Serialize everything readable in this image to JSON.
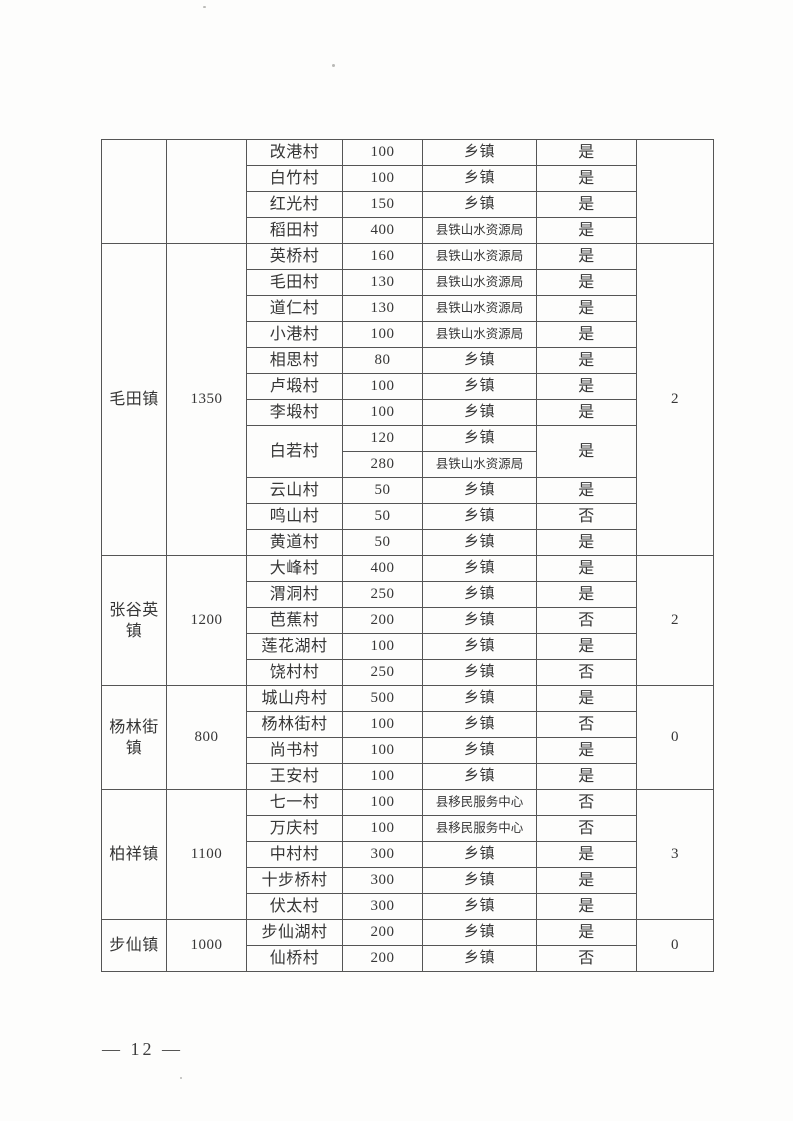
{
  "page": {
    "number_display": "— 12 —"
  },
  "table": {
    "sections": [
      {
        "town": "",
        "total": "",
        "count": "",
        "rows": [
          {
            "village": "改港村",
            "amount": "100",
            "source": "乡镇",
            "approved": "是"
          },
          {
            "village": "白竹村",
            "amount": "100",
            "source": "乡镇",
            "approved": "是"
          },
          {
            "village": "红光村",
            "amount": "150",
            "source": "乡镇",
            "approved": "是"
          },
          {
            "village": "稻田村",
            "amount": "400",
            "source": "县铁山水资源局",
            "approved": "是"
          }
        ]
      },
      {
        "town": "毛田镇",
        "total": "1350",
        "count": "2",
        "rows": [
          {
            "village": "英桥村",
            "amount": "160",
            "source": "县铁山水资源局",
            "approved": "是"
          },
          {
            "village": "毛田村",
            "amount": "130",
            "source": "县铁山水资源局",
            "approved": "是"
          },
          {
            "village": "道仁村",
            "amount": "130",
            "source": "县铁山水资源局",
            "approved": "是"
          },
          {
            "village": "小港村",
            "amount": "100",
            "source": "县铁山水资源局",
            "approved": "是"
          },
          {
            "village": "相思村",
            "amount": "80",
            "source": "乡镇",
            "approved": "是"
          },
          {
            "village": "卢塅村",
            "amount": "100",
            "source": "乡镇",
            "approved": "是"
          },
          {
            "village": "李塅村",
            "amount": "100",
            "source": "乡镇",
            "approved": "是"
          },
          {
            "village": "白若村",
            "village_span": 2,
            "amount": "120",
            "source": "乡镇",
            "approved": "是",
            "approved_span": 2
          },
          {
            "village_span": 0,
            "amount": "280",
            "source": "县铁山水资源局",
            "approved_span": 0
          },
          {
            "village": "云山村",
            "amount": "50",
            "source": "乡镇",
            "approved": "是"
          },
          {
            "village": "鸣山村",
            "amount": "50",
            "source": "乡镇",
            "approved": "否"
          },
          {
            "village": "黄道村",
            "amount": "50",
            "source": "乡镇",
            "approved": "是"
          }
        ]
      },
      {
        "town": "张谷英镇",
        "total": "1200",
        "count": "2",
        "rows": [
          {
            "village": "大峰村",
            "amount": "400",
            "source": "乡镇",
            "approved": "是"
          },
          {
            "village": "渭洞村",
            "amount": "250",
            "source": "乡镇",
            "approved": "是"
          },
          {
            "village": "芭蕉村",
            "amount": "200",
            "source": "乡镇",
            "approved": "否"
          },
          {
            "village": "莲花湖村",
            "amount": "100",
            "source": "乡镇",
            "approved": "是"
          },
          {
            "village": "饶村村",
            "amount": "250",
            "source": "乡镇",
            "approved": "否"
          }
        ]
      },
      {
        "town": "杨林街镇",
        "total": "800",
        "count": "0",
        "rows": [
          {
            "village": "城山舟村",
            "amount": "500",
            "source": "乡镇",
            "approved": "是"
          },
          {
            "village": "杨林街村",
            "amount": "100",
            "source": "乡镇",
            "approved": "否"
          },
          {
            "village": "尚书村",
            "amount": "100",
            "source": "乡镇",
            "approved": "是"
          },
          {
            "village": "王安村",
            "amount": "100",
            "source": "乡镇",
            "approved": "是"
          }
        ]
      },
      {
        "town": "柏祥镇",
        "total": "1100",
        "count": "3",
        "rows": [
          {
            "village": "七一村",
            "amount": "100",
            "source": "县移民服务中心",
            "approved": "否"
          },
          {
            "village": "万庆村",
            "amount": "100",
            "source": "县移民服务中心",
            "approved": "否"
          },
          {
            "village": "中村村",
            "amount": "300",
            "source": "乡镇",
            "approved": "是"
          },
          {
            "village": "十步桥村",
            "amount": "300",
            "source": "乡镇",
            "approved": "是"
          },
          {
            "village": "伏太村",
            "amount": "300",
            "source": "乡镇",
            "approved": "是"
          }
        ]
      },
      {
        "town": "步仙镇",
        "total": "1000",
        "count": "0",
        "rows": [
          {
            "village": "步仙湖村",
            "amount": "200",
            "source": "乡镇",
            "approved": "是"
          },
          {
            "village": "仙桥村",
            "amount": "200",
            "source": "乡镇",
            "approved": "否"
          }
        ]
      }
    ]
  }
}
